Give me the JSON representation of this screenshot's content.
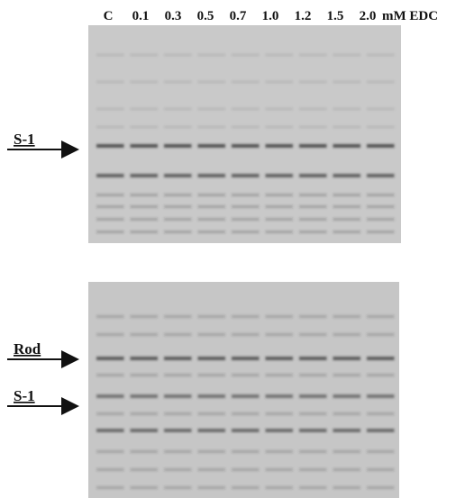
{
  "lanes": [
    "C",
    "0.1",
    "0.3",
    "0.5",
    "0.7",
    "1.0",
    "1.2",
    "1.5",
    "2.0"
  ],
  "unit": "mM EDC",
  "top_panel": {
    "labels": [
      "S-1"
    ]
  },
  "bottom_panel": {
    "labels": [
      "Rod",
      "S-1"
    ]
  }
}
